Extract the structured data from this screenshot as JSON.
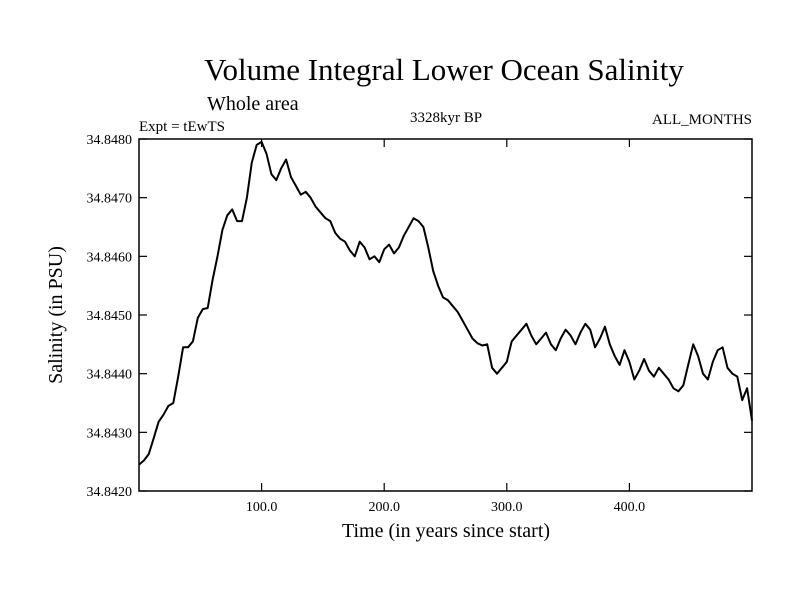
{
  "chart_data": {
    "type": "line",
    "title": "Volume Integral Lower Ocean Salinity",
    "subtitle": "Whole area",
    "experiment_label": "Expt = tEwTS",
    "period_label": "3328kyr BP",
    "months_label": "ALL_MONTHS",
    "xlabel": "Time (in years since start)",
    "ylabel": "Salinity (in PSU)",
    "xlim": [
      0,
      500
    ],
    "ylim": [
      34.842,
      34.848
    ],
    "x_ticks": [
      100,
      200,
      300,
      400
    ],
    "x_tick_labels": [
      "100.0",
      "200.0",
      "300.0",
      "400.0"
    ],
    "y_ticks": [
      34.842,
      34.843,
      34.844,
      34.845,
      34.846,
      34.847,
      34.848
    ],
    "y_tick_labels": [
      "34.8420",
      "34.8430",
      "34.8440",
      "34.8450",
      "34.8460",
      "34.8470",
      "34.8480"
    ],
    "grid": false,
    "series": [
      {
        "name": "salinity",
        "x": [
          0,
          4,
          8,
          12,
          16,
          20,
          24,
          28,
          32,
          36,
          40,
          44,
          48,
          52,
          56,
          60,
          64,
          68,
          72,
          76,
          80,
          84,
          88,
          92,
          96,
          100,
          104,
          108,
          112,
          116,
          120,
          124,
          128,
          132,
          136,
          140,
          144,
          148,
          152,
          156,
          160,
          164,
          168,
          172,
          176,
          180,
          184,
          188,
          192,
          196,
          200,
          204,
          208,
          212,
          216,
          220,
          224,
          228,
          232,
          236,
          240,
          244,
          248,
          252,
          256,
          260,
          264,
          268,
          272,
          276,
          280,
          284,
          288,
          292,
          296,
          300,
          304,
          308,
          312,
          316,
          320,
          324,
          328,
          332,
          336,
          340,
          344,
          348,
          352,
          356,
          360,
          364,
          368,
          372,
          376,
          380,
          384,
          388,
          392,
          396,
          400,
          404,
          408,
          412,
          416,
          420,
          424,
          428,
          432,
          436,
          440,
          444,
          448,
          452,
          456,
          460,
          464,
          468,
          472,
          476,
          480,
          484,
          488,
          492,
          496,
          500
        ],
        "values": [
          34.84245,
          34.84252,
          34.84263,
          34.8429,
          34.84318,
          34.8433,
          34.84345,
          34.8435,
          34.84395,
          34.84445,
          34.84445,
          34.84455,
          34.84495,
          34.8451,
          34.84512,
          34.8456,
          34.846,
          34.84645,
          34.8467,
          34.8468,
          34.8466,
          34.8466,
          34.847,
          34.8476,
          34.8479,
          34.84795,
          34.84775,
          34.8474,
          34.8473,
          34.8475,
          34.84765,
          34.84735,
          34.8472,
          34.84705,
          34.8471,
          34.847,
          34.84685,
          34.84675,
          34.84665,
          34.8466,
          34.8464,
          34.8463,
          34.84625,
          34.8461,
          34.846,
          34.84625,
          34.84615,
          34.84595,
          34.846,
          34.8459,
          34.84612,
          34.8462,
          34.84605,
          34.84615,
          34.84635,
          34.8465,
          34.84665,
          34.8466,
          34.8465,
          34.84615,
          34.84575,
          34.8455,
          34.8453,
          34.84525,
          34.84515,
          34.84505,
          34.8449,
          34.84475,
          34.8446,
          34.84452,
          34.84448,
          34.8445,
          34.8441,
          34.844,
          34.8441,
          34.8442,
          34.84455,
          34.84465,
          34.84475,
          34.84485,
          34.84465,
          34.8445,
          34.8446,
          34.8447,
          34.8445,
          34.8444,
          34.8446,
          34.84475,
          34.84465,
          34.8445,
          34.8447,
          34.84485,
          34.84475,
          34.84445,
          34.8446,
          34.8448,
          34.8445,
          34.8443,
          34.84415,
          34.8444,
          34.8442,
          34.8439,
          34.84405,
          34.84425,
          34.84405,
          34.84395,
          34.8441,
          34.844,
          34.8439,
          34.84375,
          34.8437,
          34.8438,
          34.84415,
          34.8445,
          34.8443,
          34.844,
          34.8439,
          34.8442,
          34.8444,
          34.84445,
          34.8441,
          34.844,
          34.84395,
          34.84355,
          34.84375,
          34.8432
        ]
      }
    ]
  }
}
